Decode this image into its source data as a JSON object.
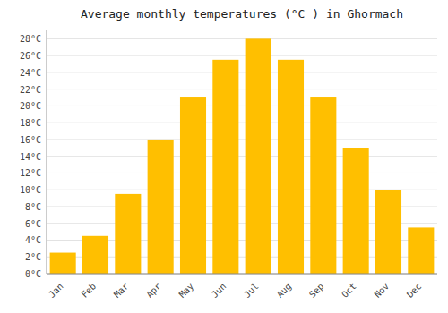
{
  "chart_data": {
    "type": "bar",
    "title": "Average monthly temperatures (°C ) in Ghormach",
    "categories": [
      "Jan",
      "Feb",
      "Mar",
      "Apr",
      "May",
      "Jun",
      "Jul",
      "Aug",
      "Sep",
      "Oct",
      "Nov",
      "Dec"
    ],
    "values": [
      2.5,
      4.5,
      9.5,
      16.0,
      21.0,
      25.5,
      28.0,
      25.5,
      21.0,
      15.0,
      10.0,
      5.5
    ],
    "color": "#FFBF00",
    "ylim": [
      0,
      29
    ],
    "yticks": [
      {
        "value": 0,
        "label": "0°C"
      },
      {
        "value": 2,
        "label": "2°C"
      },
      {
        "value": 4,
        "label": "4°C"
      },
      {
        "value": 6,
        "label": "6°C"
      },
      {
        "value": 8,
        "label": "8°C"
      },
      {
        "value": 10,
        "label": "10°C"
      },
      {
        "value": 12,
        "label": "12°C"
      },
      {
        "value": 14,
        "label": "14°C"
      },
      {
        "value": 16,
        "label": "16°C"
      },
      {
        "value": 18,
        "label": "18°C"
      },
      {
        "value": 20,
        "label": "20°C"
      },
      {
        "value": 22,
        "label": "22°C"
      },
      {
        "value": 24,
        "label": "24°C"
      },
      {
        "value": 26,
        "label": "26°C"
      },
      {
        "value": 28,
        "label": "28°C"
      }
    ],
    "grid": true
  }
}
